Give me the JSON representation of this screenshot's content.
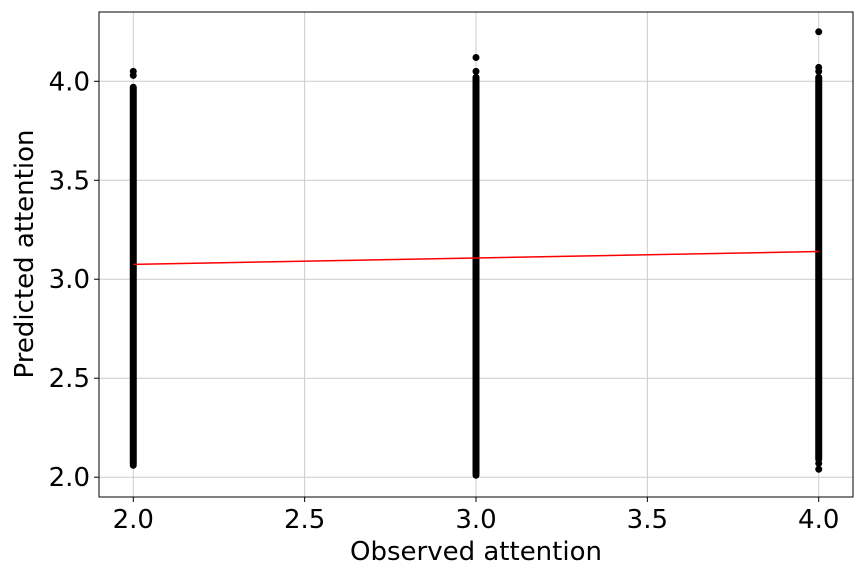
{
  "chart_data": {
    "type": "scatter",
    "title": "",
    "xlabel": "Observed attention",
    "ylabel": "Predicted attention",
    "xlim": [
      1.9,
      4.1
    ],
    "ylim": [
      1.9,
      4.35
    ],
    "grid": true,
    "x_ticks": [
      2.0,
      2.5,
      3.0,
      3.5,
      4.0
    ],
    "x_tick_labels": [
      "2.0",
      "2.5",
      "3.0",
      "3.5",
      "4.0"
    ],
    "y_ticks": [
      2.0,
      2.5,
      3.0,
      3.5,
      4.0
    ],
    "y_tick_labels": [
      "2.0",
      "2.5",
      "3.0",
      "3.5",
      "4.0"
    ],
    "series": [
      {
        "name": "observations",
        "kind": "points",
        "color": "#000000",
        "groups": [
          {
            "x": 2.0,
            "y_min": 2.07,
            "y_max": 3.97,
            "outliers": [
              2.06,
              4.03,
              4.05
            ]
          },
          {
            "x": 3.0,
            "y_min": 2.02,
            "y_max": 4.02,
            "outliers": [
              2.01,
              4.05,
              4.12
            ]
          },
          {
            "x": 4.0,
            "y_min": 2.09,
            "y_max": 4.02,
            "outliers": [
              2.04,
              2.07,
              4.05,
              4.07,
              4.25
            ]
          }
        ]
      },
      {
        "name": "fit",
        "kind": "line",
        "color": "#ff0000",
        "x": [
          2.0,
          4.0
        ],
        "y": [
          3.075,
          3.14
        ]
      }
    ]
  }
}
